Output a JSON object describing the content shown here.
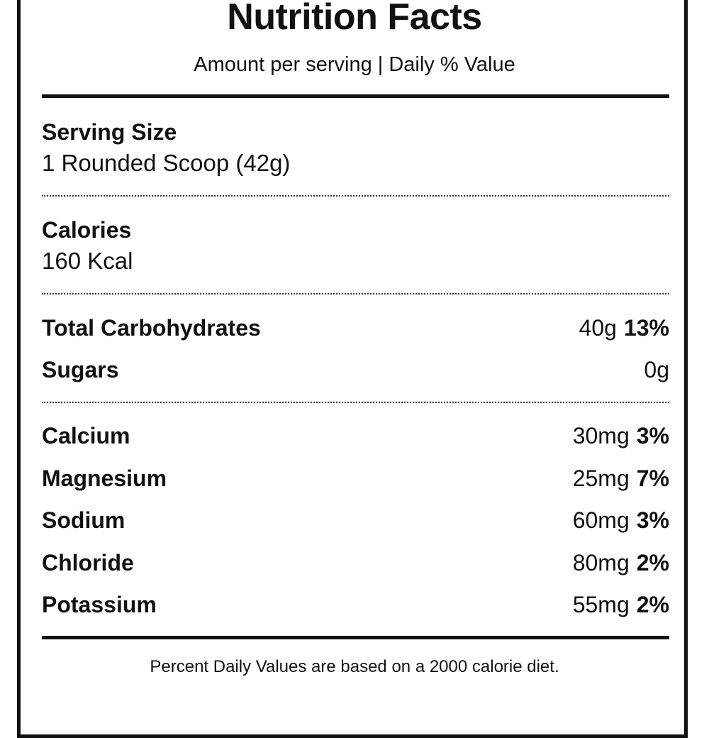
{
  "header": {
    "title": "Nutrition Facts",
    "subtitle": "Amount per serving | Daily % Value"
  },
  "serving": {
    "label": "Serving Size",
    "value": "1 Rounded Scoop (42g)"
  },
  "calories": {
    "label": "Calories",
    "value": "160 Kcal"
  },
  "carbs": [
    {
      "name": "Total Carbohydrates",
      "amount": "40g",
      "dv": "13%"
    },
    {
      "name": "Sugars",
      "amount": "0g",
      "dv": ""
    }
  ],
  "minerals": [
    {
      "name": "Calcium",
      "amount": "30mg",
      "dv": "3%"
    },
    {
      "name": "Magnesium",
      "amount": "25mg",
      "dv": "7%"
    },
    {
      "name": "Sodium",
      "amount": "60mg",
      "dv": "3%"
    },
    {
      "name": "Chloride",
      "amount": "80mg",
      "dv": "2%"
    },
    {
      "name": "Potassium",
      "amount": "55mg",
      "dv": "2%"
    }
  ],
  "footnote": "Percent Daily Values are based on a 2000 calorie diet.",
  "colors": {
    "ink": "#111111",
    "background": "#ffffff"
  }
}
